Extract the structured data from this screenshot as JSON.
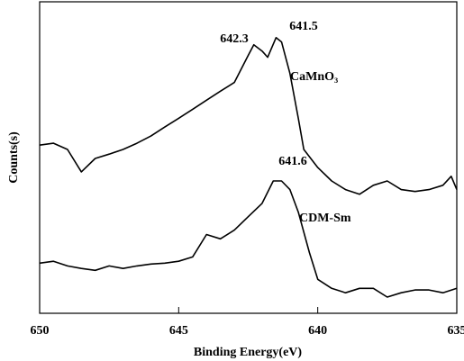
{
  "chart_data": {
    "type": "line",
    "xlabel": "Binding Energy(eV)",
    "ylabel": "Counts(s)",
    "xlim": [
      650,
      635
    ],
    "xticks": [
      650,
      645,
      640,
      635
    ],
    "ylim": [
      0,
      100
    ],
    "series": [
      {
        "name": "CaMnO₃",
        "color": "#000000",
        "x": [
          650,
          649.5,
          649,
          648.5,
          648,
          647.5,
          647,
          646.5,
          646,
          645.5,
          645,
          644.5,
          644,
          643.5,
          643,
          642.5,
          642.3,
          642,
          641.8,
          641.5,
          641.3,
          641,
          640.7,
          640.5,
          640,
          639.5,
          639,
          638.5,
          638,
          637.5,
          637,
          636.5,
          636,
          635.5,
          635.2,
          635
        ],
        "values": [
          54.0,
          54.6,
          52.6,
          45.4,
          49.7,
          51.1,
          52.6,
          54.6,
          56.9,
          59.8,
          62.6,
          65.5,
          68.4,
          71.3,
          74.1,
          82.8,
          86.2,
          84.2,
          82.2,
          88.5,
          87.1,
          77.0,
          62.6,
          52.6,
          46.8,
          42.5,
          39.7,
          38.2,
          41.1,
          42.5,
          39.7,
          39.1,
          39.7,
          41.1,
          44.0,
          39.7
        ]
      },
      {
        "name": "CDM-Sm",
        "color": "#000000",
        "x": [
          650,
          649.5,
          649,
          648.5,
          648,
          647.5,
          647,
          646.5,
          646,
          645.5,
          645,
          644.5,
          644,
          643.5,
          643,
          642.5,
          642,
          641.6,
          641.3,
          641,
          640.7,
          640.3,
          640,
          639.5,
          639,
          638.5,
          638,
          637.5,
          637,
          636.5,
          636,
          635.5,
          635
        ],
        "values": [
          16.1,
          16.7,
          15.2,
          14.4,
          13.8,
          15.2,
          14.4,
          15.2,
          15.8,
          16.1,
          16.7,
          18.1,
          25.3,
          23.9,
          26.7,
          31.0,
          35.3,
          42.5,
          42.5,
          39.7,
          32.5,
          19.5,
          10.9,
          8.0,
          6.6,
          8.0,
          8.0,
          5.2,
          6.6,
          7.5,
          7.5,
          6.6,
          8.0
        ]
      }
    ],
    "annotations": [
      "642.3",
      "641.5",
      "641.6"
    ]
  }
}
